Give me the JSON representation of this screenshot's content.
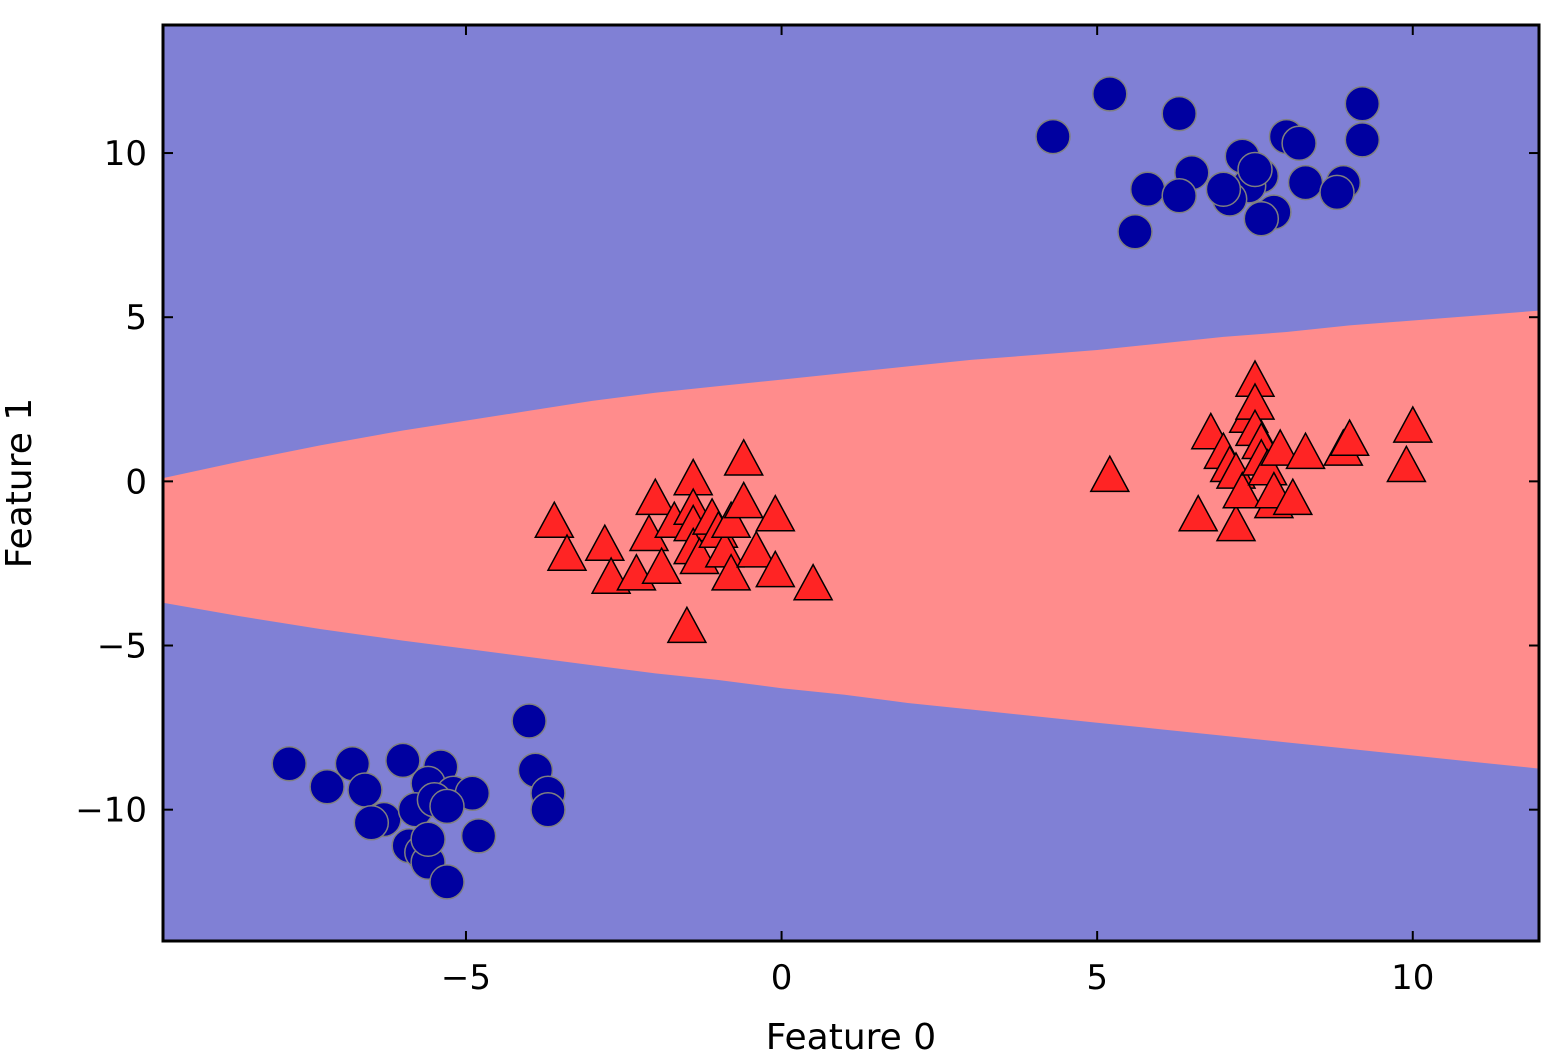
{
  "chart_data": {
    "type": "scatter",
    "title": "",
    "xlabel": "Feature 0",
    "ylabel": "Feature 1",
    "xlim": [
      -9.8,
      12.0
    ],
    "ylim": [
      -14.0,
      13.9
    ],
    "x_ticks": [
      {
        "value": -5,
        "label": "−5"
      },
      {
        "value": 0,
        "label": "0"
      },
      {
        "value": 5,
        "label": "5"
      },
      {
        "value": 10,
        "label": "10"
      }
    ],
    "y_ticks": [
      {
        "value": -10,
        "label": "−10"
      },
      {
        "value": -5,
        "label": "−5"
      },
      {
        "value": 0,
        "label": "0"
      },
      {
        "value": 5,
        "label": "5"
      },
      {
        "value": 10,
        "label": "10"
      }
    ],
    "grid": false,
    "legend": "none",
    "decision_regions": {
      "background_class_color": "#8080d5",
      "band_class_color": "#ff8c8c",
      "band_upper_boundary": [
        [
          -9.8,
          0.1
        ],
        [
          -8.6,
          0.6
        ],
        [
          -7.3,
          1.1
        ],
        [
          -6.0,
          1.55
        ],
        [
          -5.0,
          1.85
        ],
        [
          -4.0,
          2.15
        ],
        [
          -3.0,
          2.45
        ],
        [
          -2.0,
          2.7
        ],
        [
          -1.0,
          2.9
        ],
        [
          0.0,
          3.1
        ],
        [
          1.0,
          3.3
        ],
        [
          2.0,
          3.5
        ],
        [
          3.0,
          3.7
        ],
        [
          4.0,
          3.85
        ],
        [
          5.0,
          4.0
        ],
        [
          6.0,
          4.2
        ],
        [
          7.0,
          4.4
        ],
        [
          8.0,
          4.55
        ],
        [
          9.0,
          4.75
        ],
        [
          10.0,
          4.9
        ],
        [
          11.0,
          5.05
        ],
        [
          12.0,
          5.2
        ]
      ],
      "band_lower_boundary": [
        [
          -9.8,
          -3.7
        ],
        [
          -8.6,
          -4.1
        ],
        [
          -7.3,
          -4.5
        ],
        [
          -6.0,
          -4.85
        ],
        [
          -5.0,
          -5.1
        ],
        [
          -4.0,
          -5.35
        ],
        [
          -3.0,
          -5.6
        ],
        [
          -2.0,
          -5.85
        ],
        [
          -1.0,
          -6.05
        ],
        [
          0.0,
          -6.3
        ],
        [
          1.0,
          -6.5
        ],
        [
          2.0,
          -6.75
        ],
        [
          3.0,
          -6.95
        ],
        [
          4.0,
          -7.15
        ],
        [
          5.0,
          -7.35
        ],
        [
          6.0,
          -7.55
        ],
        [
          7.0,
          -7.75
        ],
        [
          8.0,
          -7.95
        ],
        [
          9.0,
          -8.15
        ],
        [
          10.0,
          -8.35
        ],
        [
          11.0,
          -8.55
        ],
        [
          12.0,
          -8.75
        ]
      ]
    },
    "series": [
      {
        "marker": "circle",
        "color": "#0000a0",
        "edge_color": "#7f7f7f",
        "points": [
          [
            4.3,
            10.5
          ],
          [
            5.2,
            11.8
          ],
          [
            6.3,
            11.2
          ],
          [
            9.2,
            11.5
          ],
          [
            8.0,
            10.5
          ],
          [
            8.2,
            10.3
          ],
          [
            9.2,
            10.4
          ],
          [
            7.3,
            9.9
          ],
          [
            6.5,
            9.4
          ],
          [
            7.6,
            9.3
          ],
          [
            7.4,
            9.0
          ],
          [
            7.1,
            8.6
          ],
          [
            5.8,
            8.9
          ],
          [
            6.3,
            8.7
          ],
          [
            8.3,
            9.1
          ],
          [
            8.9,
            9.1
          ],
          [
            8.8,
            8.8
          ],
          [
            7.8,
            8.2
          ],
          [
            7.6,
            8.0
          ],
          [
            5.6,
            7.6
          ],
          [
            7.5,
            9.5
          ],
          [
            7.0,
            8.9
          ],
          [
            -4.0,
            -7.3
          ],
          [
            -7.8,
            -8.6
          ],
          [
            -6.8,
            -8.6
          ],
          [
            -6.0,
            -8.5
          ],
          [
            -5.4,
            -8.7
          ],
          [
            -7.2,
            -9.3
          ],
          [
            -6.6,
            -9.4
          ],
          [
            -5.6,
            -9.2
          ],
          [
            -5.2,
            -9.5
          ],
          [
            -4.9,
            -9.5
          ],
          [
            -3.9,
            -8.8
          ],
          [
            -3.7,
            -9.5
          ],
          [
            -3.7,
            -10.0
          ],
          [
            -6.3,
            -10.3
          ],
          [
            -6.5,
            -10.4
          ],
          [
            -5.8,
            -10.0
          ],
          [
            -5.5,
            -9.7
          ],
          [
            -5.3,
            -9.9
          ],
          [
            -4.8,
            -10.8
          ],
          [
            -5.9,
            -11.1
          ],
          [
            -5.7,
            -11.3
          ],
          [
            -5.6,
            -11.6
          ],
          [
            -5.3,
            -12.2
          ],
          [
            -5.6,
            -10.9
          ]
        ]
      },
      {
        "marker": "triangle",
        "color": "#ff2424",
        "edge_color": "#000000",
        "points": [
          [
            -3.6,
            -1.3
          ],
          [
            -3.4,
            -2.3
          ],
          [
            -2.8,
            -2.0
          ],
          [
            -2.7,
            -3.0
          ],
          [
            -2.3,
            -2.9
          ],
          [
            -2.0,
            -0.6
          ],
          [
            -2.1,
            -1.7
          ],
          [
            -1.9,
            -2.7
          ],
          [
            -1.7,
            -1.3
          ],
          [
            -1.4,
            0.0
          ],
          [
            -1.4,
            -0.9
          ],
          [
            -1.4,
            -1.4
          ],
          [
            -1.4,
            -2.1
          ],
          [
            -1.3,
            -2.4
          ],
          [
            -1.5,
            -4.5
          ],
          [
            -1.1,
            -1.2
          ],
          [
            -1.0,
            -1.6
          ],
          [
            -0.9,
            -2.2
          ],
          [
            -0.8,
            -1.3
          ],
          [
            -0.8,
            -2.9
          ],
          [
            -0.6,
            0.6
          ],
          [
            -0.6,
            -0.7
          ],
          [
            -0.4,
            -2.2
          ],
          [
            -0.1,
            -1.1
          ],
          [
            -0.1,
            -2.8
          ],
          [
            0.5,
            -3.2
          ],
          [
            5.2,
            0.1
          ],
          [
            6.6,
            -1.1
          ],
          [
            6.8,
            1.4
          ],
          [
            7.0,
            0.8
          ],
          [
            7.1,
            0.4
          ],
          [
            7.2,
            -1.4
          ],
          [
            7.2,
            0.2
          ],
          [
            7.3,
            -0.4
          ],
          [
            7.4,
            1.9
          ],
          [
            7.5,
            3.0
          ],
          [
            7.5,
            2.3
          ],
          [
            7.5,
            1.5
          ],
          [
            7.6,
            1.1
          ],
          [
            7.6,
            0.6
          ],
          [
            7.7,
            0.3
          ],
          [
            7.8,
            -0.7
          ],
          [
            7.8,
            -0.4
          ],
          [
            7.9,
            0.9
          ],
          [
            8.1,
            -0.6
          ],
          [
            8.3,
            0.8
          ],
          [
            8.9,
            0.9
          ],
          [
            9.0,
            1.2
          ],
          [
            9.9,
            0.4
          ],
          [
            10.0,
            1.6
          ]
        ]
      }
    ]
  }
}
